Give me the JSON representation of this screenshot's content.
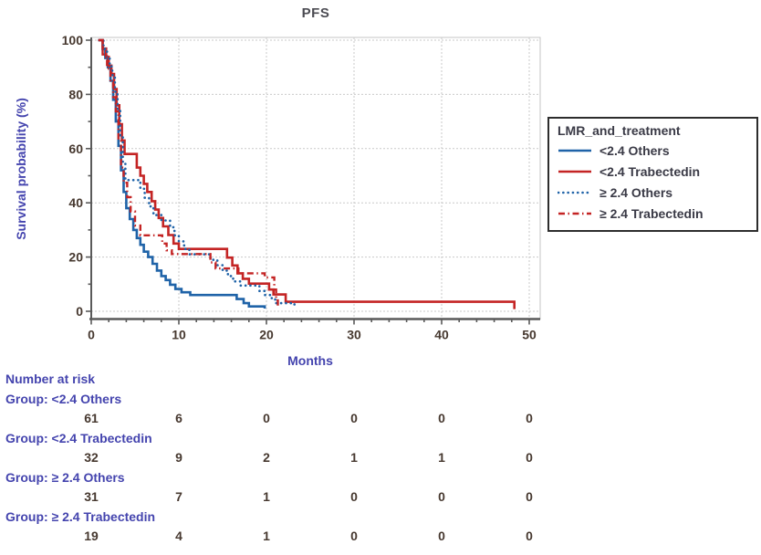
{
  "figure_title": "PFS",
  "axes": {
    "x": {
      "label": "Months",
      "min": 0,
      "max": 50,
      "major_ticks": [
        0,
        10,
        20,
        30,
        40,
        50
      ],
      "minor_step": 2
    },
    "y": {
      "label": "Survival probability (%)",
      "min": 0,
      "max": 100,
      "major_ticks": [
        0,
        20,
        40,
        60,
        80,
        100
      ],
      "minor_step": 10
    }
  },
  "legend": {
    "title": "LMR_and_treatment"
  },
  "chart_data": {
    "type": "line",
    "subtype": "kaplan-meier-step",
    "title": "PFS",
    "xlabel": "Months",
    "ylabel": "Survival probability (%)",
    "xlim": [
      0,
      50
    ],
    "ylim": [
      0,
      100
    ],
    "grid": true,
    "legend_position": "right",
    "series": [
      {
        "name": "<2.4 Others",
        "color": "#1f63a8",
        "line_style": "solid",
        "points": [
          [
            0.8,
            100
          ],
          [
            1.3,
            96.7
          ],
          [
            1.6,
            93.4
          ],
          [
            1.9,
            90
          ],
          [
            2.2,
            85
          ],
          [
            2.5,
            78
          ],
          [
            2.8,
            70
          ],
          [
            3.1,
            61
          ],
          [
            3.4,
            52
          ],
          [
            3.7,
            44
          ],
          [
            4,
            38
          ],
          [
            4.4,
            34
          ],
          [
            4.8,
            30
          ],
          [
            5.2,
            27
          ],
          [
            5.6,
            24.5
          ],
          [
            6,
            22
          ],
          [
            6.5,
            20
          ],
          [
            7,
            17.5
          ],
          [
            7.5,
            15
          ],
          [
            8,
            13
          ],
          [
            8.5,
            11.5
          ],
          [
            9,
            9.8
          ],
          [
            9.6,
            8.2
          ],
          [
            10.3,
            7
          ],
          [
            11.3,
            6
          ],
          [
            16.2,
            6
          ],
          [
            16.6,
            4.5
          ],
          [
            17.4,
            3
          ],
          [
            18,
            1.8
          ],
          [
            19.8,
            1.8
          ],
          [
            19.8,
            1
          ]
        ]
      },
      {
        "name": "<2.4 Trabectedin",
        "color": "#c42424",
        "line_style": "solid",
        "points": [
          [
            0.9,
            100
          ],
          [
            1.3,
            96.9
          ],
          [
            1.7,
            93.8
          ],
          [
            2,
            90.6
          ],
          [
            2.3,
            87.5
          ],
          [
            2.6,
            82
          ],
          [
            2.9,
            76
          ],
          [
            3.2,
            69
          ],
          [
            3.5,
            63
          ],
          [
            3.8,
            58
          ],
          [
            4.9,
            58
          ],
          [
            5.2,
            53
          ],
          [
            5.6,
            50
          ],
          [
            6,
            47
          ],
          [
            6.4,
            44
          ],
          [
            6.9,
            40.6
          ],
          [
            7.3,
            37.5
          ],
          [
            7.7,
            34.4
          ],
          [
            8.2,
            31.3
          ],
          [
            8.8,
            28.1
          ],
          [
            9.4,
            25
          ],
          [
            10,
            23
          ],
          [
            15,
            23
          ],
          [
            15.5,
            19.8
          ],
          [
            16.1,
            16.9
          ],
          [
            16.7,
            14
          ],
          [
            17.3,
            12
          ],
          [
            18,
            10.2
          ],
          [
            19.9,
            10.2
          ],
          [
            20.3,
            8
          ],
          [
            20.8,
            6.2
          ],
          [
            21.8,
            6.2
          ],
          [
            22.2,
            3.5
          ],
          [
            48.3,
            3.5
          ],
          [
            48.3,
            0.8
          ]
        ]
      },
      {
        "name": "≥ 2.4 Others",
        "color": "#1f63a8",
        "line_style": "dotted",
        "points": [
          [
            0.9,
            100
          ],
          [
            1.4,
            96.8
          ],
          [
            1.8,
            93.5
          ],
          [
            2.1,
            90.3
          ],
          [
            2.4,
            87.1
          ],
          [
            2.7,
            81
          ],
          [
            3,
            74
          ],
          [
            3.3,
            64.5
          ],
          [
            3.6,
            55
          ],
          [
            3.9,
            48.4
          ],
          [
            5.2,
            48.4
          ],
          [
            5.6,
            45.2
          ],
          [
            6.1,
            41.9
          ],
          [
            6.6,
            38.7
          ],
          [
            7.1,
            35.5
          ],
          [
            8,
            33.5
          ],
          [
            9,
            31
          ],
          [
            9.5,
            28
          ],
          [
            10,
            25.8
          ],
          [
            10.6,
            23
          ],
          [
            11.2,
            21
          ],
          [
            13,
            21
          ],
          [
            13.6,
            19
          ],
          [
            14.4,
            17
          ],
          [
            15,
            15
          ],
          [
            15.6,
            13
          ],
          [
            16.2,
            11
          ],
          [
            17,
            9.5
          ],
          [
            18.6,
            9.5
          ],
          [
            19.2,
            7.5
          ],
          [
            19.8,
            6
          ],
          [
            20.6,
            4.5
          ],
          [
            21,
            3
          ],
          [
            23.2,
            3
          ],
          [
            23.2,
            2.2
          ]
        ]
      },
      {
        "name": "≥ 2.4 Trabectedin",
        "color": "#c42424",
        "line_style": "dashdot",
        "points": [
          [
            0.8,
            100
          ],
          [
            1.3,
            94.7
          ],
          [
            1.8,
            89.5
          ],
          [
            2.2,
            84.2
          ],
          [
            2.5,
            79
          ],
          [
            2.8,
            73.7
          ],
          [
            3.1,
            63.2
          ],
          [
            3.4,
            53
          ],
          [
            3.7,
            47.4
          ],
          [
            4.1,
            42.1
          ],
          [
            4.5,
            36.8
          ],
          [
            5,
            31.6
          ],
          [
            5.6,
            28
          ],
          [
            7.6,
            28
          ],
          [
            8.1,
            25
          ],
          [
            8.6,
            22.5
          ],
          [
            9.2,
            21.1
          ],
          [
            13,
            21.1
          ],
          [
            13.6,
            18
          ],
          [
            14.2,
            15.8
          ],
          [
            16.2,
            15.8
          ],
          [
            16.8,
            14
          ],
          [
            19.4,
            14
          ],
          [
            19.8,
            12.5
          ],
          [
            20.6,
            12.5
          ],
          [
            20.9,
            8
          ],
          [
            21.1,
            4
          ],
          [
            21.3,
            0.9
          ]
        ]
      }
    ]
  },
  "at_risk": {
    "heading": "Number at risk",
    "time_points": [
      0,
      10,
      20,
      30,
      40,
      50
    ],
    "groups": [
      {
        "label": "Group: <2.4 Others",
        "counts": [
          "61",
          "6",
          "0",
          "0",
          "0",
          "0"
        ]
      },
      {
        "label": "Group: <2.4 Trabectedin",
        "counts": [
          "32",
          "9",
          "2",
          "1",
          "1",
          "0"
        ]
      },
      {
        "label": "Group: ≥ 2.4 Others",
        "counts": [
          "31",
          "7",
          "1",
          "0",
          "0",
          "0"
        ]
      },
      {
        "label": "Group: ≥ 2.4 Trabectedin",
        "counts": [
          "19",
          "4",
          "1",
          "0",
          "0",
          "0"
        ]
      }
    ]
  },
  "colors": {
    "blue_curve": "#1f63a8",
    "red_curve": "#c42424",
    "blue_text": "#4444ae",
    "dark_text": "#46382f",
    "grid": "#c9c9c9",
    "axis": "#5a5a5a",
    "frame": "#c4c4c4",
    "legend_border": "#2d2d2d"
  }
}
